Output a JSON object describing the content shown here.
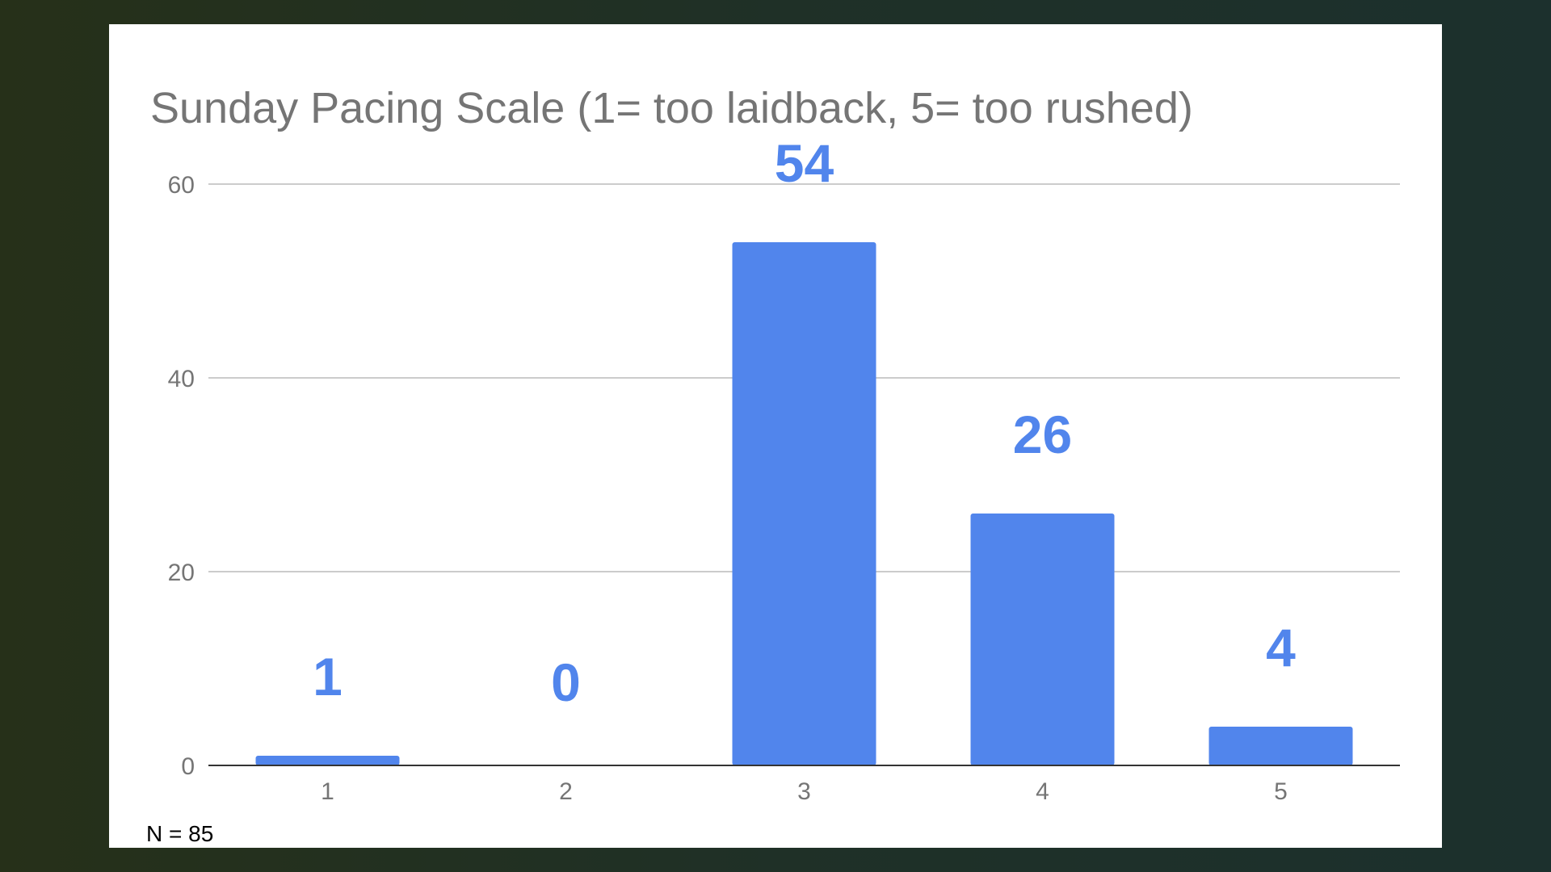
{
  "chart_data": {
    "type": "bar",
    "title": "Sunday Pacing Scale (1= too laidback, 5= too rushed)",
    "categories": [
      "1",
      "2",
      "3",
      "4",
      "5"
    ],
    "values": [
      1,
      0,
      54,
      26,
      4
    ],
    "data_labels": [
      "1",
      "0",
      "54",
      "26",
      "4"
    ],
    "y_ticks": [
      "0",
      "20",
      "40",
      "60"
    ],
    "ylim": [
      0,
      60
    ],
    "xlabel": "",
    "ylabel": "",
    "grid": true,
    "legend": "none",
    "bar_color": "#5185ec",
    "note": "N = 85"
  }
}
